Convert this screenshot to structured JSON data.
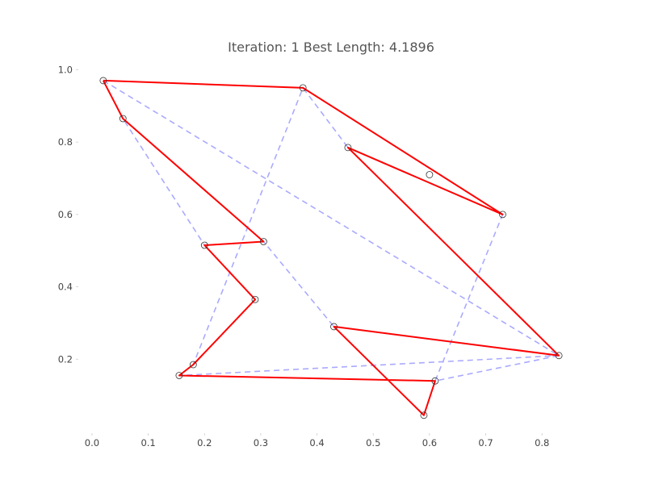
{
  "chart_data": {
    "type": "line",
    "title": "Iteration: 1  Best Length: 4.1896",
    "xlabel": "",
    "ylabel": "",
    "xlim": [
      -0.02,
      0.87
    ],
    "ylim": [
      0.0,
      1.03
    ],
    "x_ticks": [
      0.0,
      0.1,
      0.2,
      0.3,
      0.4,
      0.5,
      0.6,
      0.7,
      0.8
    ],
    "x_tick_labels": [
      "0.0",
      "0.1",
      "0.2",
      "0.3",
      "0.4",
      "0.5",
      "0.6",
      "0.7",
      "0.8"
    ],
    "y_ticks": [
      0.2,
      0.4,
      0.6,
      0.8,
      1.0
    ],
    "y_tick_labels": [
      "0.2",
      "0.4",
      "0.6",
      "0.8",
      "1.0"
    ],
    "grid": false,
    "legend": "none",
    "colors": {
      "best_route": "#ff0000",
      "current_route": "#aaaaff",
      "city_marker_edge": "#333333",
      "title": "#555555",
      "tick_label": "#444444"
    },
    "cities": [
      {
        "x": 0.02,
        "y": 0.97
      },
      {
        "x": 0.055,
        "y": 0.865
      },
      {
        "x": 0.375,
        "y": 0.95
      },
      {
        "x": 0.455,
        "y": 0.785
      },
      {
        "x": 0.6,
        "y": 0.71
      },
      {
        "x": 0.73,
        "y": 0.6
      },
      {
        "x": 0.305,
        "y": 0.525
      },
      {
        "x": 0.2,
        "y": 0.515
      },
      {
        "x": 0.29,
        "y": 0.365
      },
      {
        "x": 0.43,
        "y": 0.29
      },
      {
        "x": 0.83,
        "y": 0.21
      },
      {
        "x": 0.18,
        "y": 0.185
      },
      {
        "x": 0.155,
        "y": 0.155
      },
      {
        "x": 0.61,
        "y": 0.14
      },
      {
        "x": 0.59,
        "y": 0.045
      }
    ],
    "series": [
      {
        "role": "current_route",
        "style": "dashed",
        "order": [
          0,
          10,
          13,
          5,
          3,
          2,
          11,
          12,
          10,
          9,
          6,
          7,
          1,
          0
        ]
      },
      {
        "role": "best_route",
        "style": "solid",
        "order": [
          0,
          2,
          5,
          3,
          10,
          9,
          14,
          13,
          12,
          11,
          8,
          7,
          6,
          1,
          0
        ]
      }
    ]
  }
}
